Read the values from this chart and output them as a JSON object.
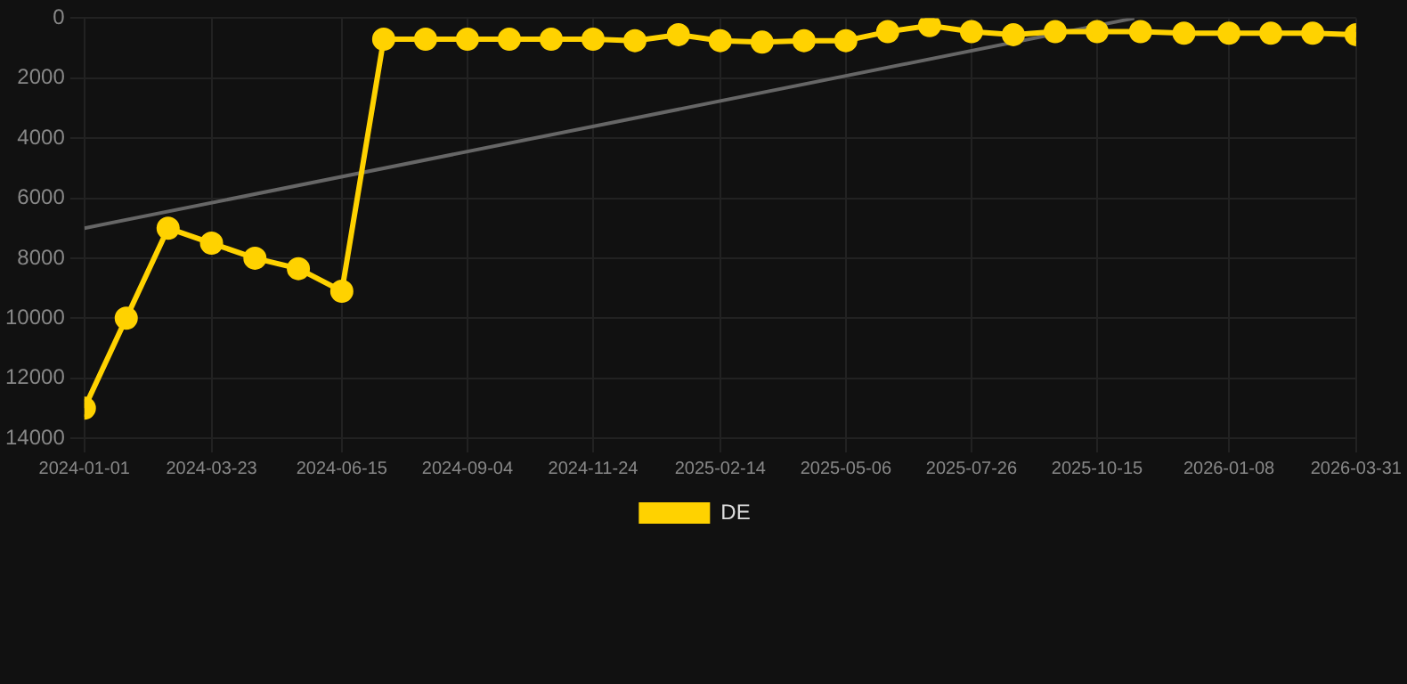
{
  "chart_data": {
    "type": "line",
    "x": [
      "2024-01-01",
      "2024-01-28",
      "2024-02-24",
      "2024-03-23",
      "2024-04-20",
      "2024-05-18",
      "2024-06-15",
      "2024-07-12",
      "2024-08-08",
      "2024-09-04",
      "2024-10-01",
      "2024-10-28",
      "2024-11-24",
      "2024-12-21",
      "2025-01-18",
      "2025-02-14",
      "2025-03-13",
      "2025-04-09",
      "2025-05-06",
      "2025-06-02",
      "2025-06-29",
      "2025-07-26",
      "2025-08-22",
      "2025-09-18",
      "2025-10-15",
      "2025-11-12",
      "2025-12-10",
      "2026-01-08",
      "2026-02-04",
      "2026-03-03",
      "2026-03-31"
    ],
    "series": [
      {
        "name": "DE",
        "color": "#ffd200",
        "values": [
          13000,
          10000,
          7000,
          7500,
          8000,
          8350,
          9100,
          700,
          700,
          700,
          700,
          700,
          700,
          750,
          550,
          750,
          800,
          750,
          750,
          450,
          250,
          450,
          550,
          450,
          450,
          450,
          500,
          500,
          500,
          500,
          550
        ]
      },
      {
        "type": "line",
        "color": "#666666",
        "marker": "none",
        "x": [
          "2024-01-01",
          "2025-11-08"
        ],
        "values": [
          7000,
          0
        ]
      }
    ],
    "xlim": [
      "2024-01-01",
      "2026-03-31"
    ],
    "xticks": [
      {
        "value": "2024-01-01",
        "label": "2024-01-01"
      },
      {
        "value": "2024-03-23",
        "label": "2024-03-23"
      },
      {
        "value": "2024-06-15",
        "label": "2024-06-15"
      },
      {
        "value": "2024-09-04",
        "label": "2024-09-04"
      },
      {
        "value": "2024-11-24",
        "label": "2024-11-24"
      },
      {
        "value": "2025-02-14",
        "label": "2025-02-14"
      },
      {
        "value": "2025-05-06",
        "label": "2025-05-06"
      },
      {
        "value": "2025-07-26",
        "label": "2025-07-26"
      },
      {
        "value": "2025-10-15",
        "label": "2025-10-15"
      },
      {
        "value": "2026-01-08",
        "label": "2026-01-08"
      },
      {
        "value": "2026-03-31",
        "label": "2026-03-31"
      }
    ],
    "ylim": [
      14000,
      0
    ],
    "yticks": [
      0,
      2000,
      4000,
      6000,
      8000,
      10000,
      12000,
      14000
    ],
    "grid": true,
    "legend": "bottom",
    "marker": "circle",
    "line_style": "solid"
  }
}
